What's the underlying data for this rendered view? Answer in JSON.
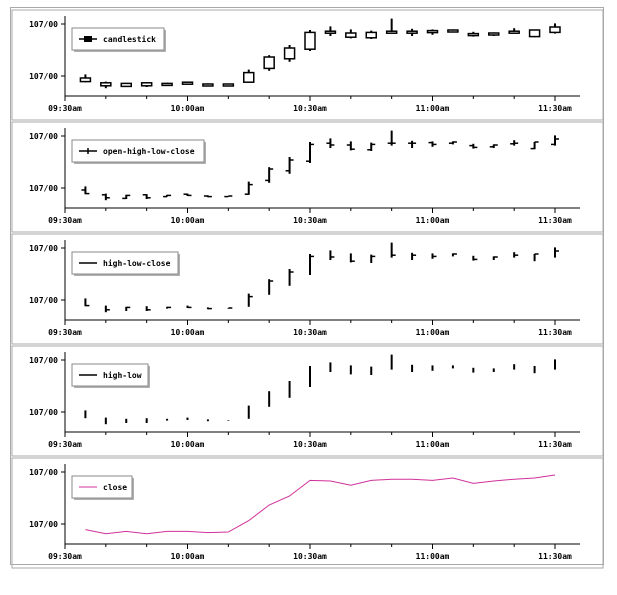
{
  "chart_data": [
    {
      "type": "candlestick",
      "legend": "candlestick",
      "legend_placement": "top-left",
      "x_ticks": [
        "09:30am",
        "10:00am",
        "10:30am",
        "11:00am",
        "11:30am"
      ],
      "y_ticks": [
        "107/00",
        "107/00"
      ],
      "grid": false,
      "x_range": [
        "09:30am",
        "11:30am"
      ],
      "bars": [
        {
          "t": "09:35am",
          "open": 0.2,
          "high": 0.26,
          "low": 0.13,
          "close": 0.14
        },
        {
          "t": "09:40am",
          "open": 0.12,
          "high": 0.14,
          "low": 0.03,
          "close": 0.07
        },
        {
          "t": "09:45am",
          "open": 0.06,
          "high": 0.12,
          "low": 0.05,
          "close": 0.11
        },
        {
          "t": "09:50am",
          "open": 0.12,
          "high": 0.13,
          "low": 0.05,
          "close": 0.07
        },
        {
          "t": "09:55am",
          "open": 0.09,
          "high": 0.12,
          "low": 0.09,
          "close": 0.11
        },
        {
          "t": "10:00am",
          "open": 0.13,
          "high": 0.14,
          "low": 0.1,
          "close": 0.11
        },
        {
          "t": "10:05am",
          "open": 0.1,
          "high": 0.11,
          "low": 0.08,
          "close": 0.09
        },
        {
          "t": "10:10am",
          "open": 0.09,
          "high": 0.1,
          "low": 0.09,
          "close": 0.1
        },
        {
          "t": "10:15am",
          "open": 0.13,
          "high": 0.34,
          "low": 0.12,
          "close": 0.29
        },
        {
          "t": "10:20am",
          "open": 0.36,
          "high": 0.58,
          "low": 0.32,
          "close": 0.55
        },
        {
          "t": "10:25am",
          "open": 0.52,
          "high": 0.75,
          "low": 0.47,
          "close": 0.7
        },
        {
          "t": "10:30am",
          "open": 0.68,
          "high": 1.0,
          "low": 0.65,
          "close": 0.96
        },
        {
          "t": "10:35am",
          "open": 0.98,
          "high": 1.06,
          "low": 0.9,
          "close": 0.95
        },
        {
          "t": "10:40am",
          "open": 0.95,
          "high": 1.01,
          "low": 0.86,
          "close": 0.88
        },
        {
          "t": "10:45am",
          "open": 0.87,
          "high": 0.99,
          "low": 0.85,
          "close": 0.96
        },
        {
          "t": "10:50am",
          "open": 0.98,
          "high": 1.19,
          "low": 0.94,
          "close": 0.98
        },
        {
          "t": "10:55am",
          "open": 0.98,
          "high": 1.02,
          "low": 0.9,
          "close": 0.98
        },
        {
          "t": "11:00am",
          "open": 0.99,
          "high": 1.01,
          "low": 0.92,
          "close": 0.96
        },
        {
          "t": "11:05am",
          "open": 0.98,
          "high": 1.01,
          "low": 0.96,
          "close": 1.0
        },
        {
          "t": "11:10am",
          "open": 0.94,
          "high": 0.97,
          "low": 0.89,
          "close": 0.91
        },
        {
          "t": "11:15am",
          "open": 0.92,
          "high": 0.96,
          "low": 0.9,
          "close": 0.95
        },
        {
          "t": "11:20am",
          "open": 0.97,
          "high": 1.03,
          "low": 0.94,
          "close": 0.98
        },
        {
          "t": "11:25am",
          "open": 0.89,
          "high": 1.0,
          "low": 0.88,
          "close": 1.0
        },
        {
          "t": "11:30am",
          "open": 0.96,
          "high": 1.11,
          "low": 0.94,
          "close": 1.05
        }
      ]
    },
    {
      "type": "ohlc",
      "legend": "open-high-low-close",
      "legend_placement": "top-left",
      "x_ticks": [
        "09:30am",
        "10:00am",
        "10:30am",
        "11:00am",
        "11:30am"
      ],
      "y_ticks": [
        "107/00",
        "107/00"
      ]
    },
    {
      "type": "hlc",
      "legend": "high-low-close",
      "legend_placement": "top-left",
      "x_ticks": [
        "09:30am",
        "10:00am",
        "10:30am",
        "11:00am",
        "11:30am"
      ],
      "y_ticks": [
        "107/00",
        "107/00"
      ]
    },
    {
      "type": "high-low",
      "legend": "high-low",
      "legend_placement": "top-left",
      "x_ticks": [
        "09:30am",
        "10:00am",
        "10:30am",
        "11:00am",
        "11:30am"
      ],
      "y_ticks": [
        "107/00",
        "107/00"
      ]
    },
    {
      "type": "line",
      "legend": "close",
      "legend_placement": "top-left",
      "line_color": "#d0309a",
      "x_ticks": [
        "09:30am",
        "10:00am",
        "10:30am",
        "11:00am",
        "11:30am"
      ],
      "y_ticks": [
        "107/00",
        "107/00"
      ]
    }
  ]
}
